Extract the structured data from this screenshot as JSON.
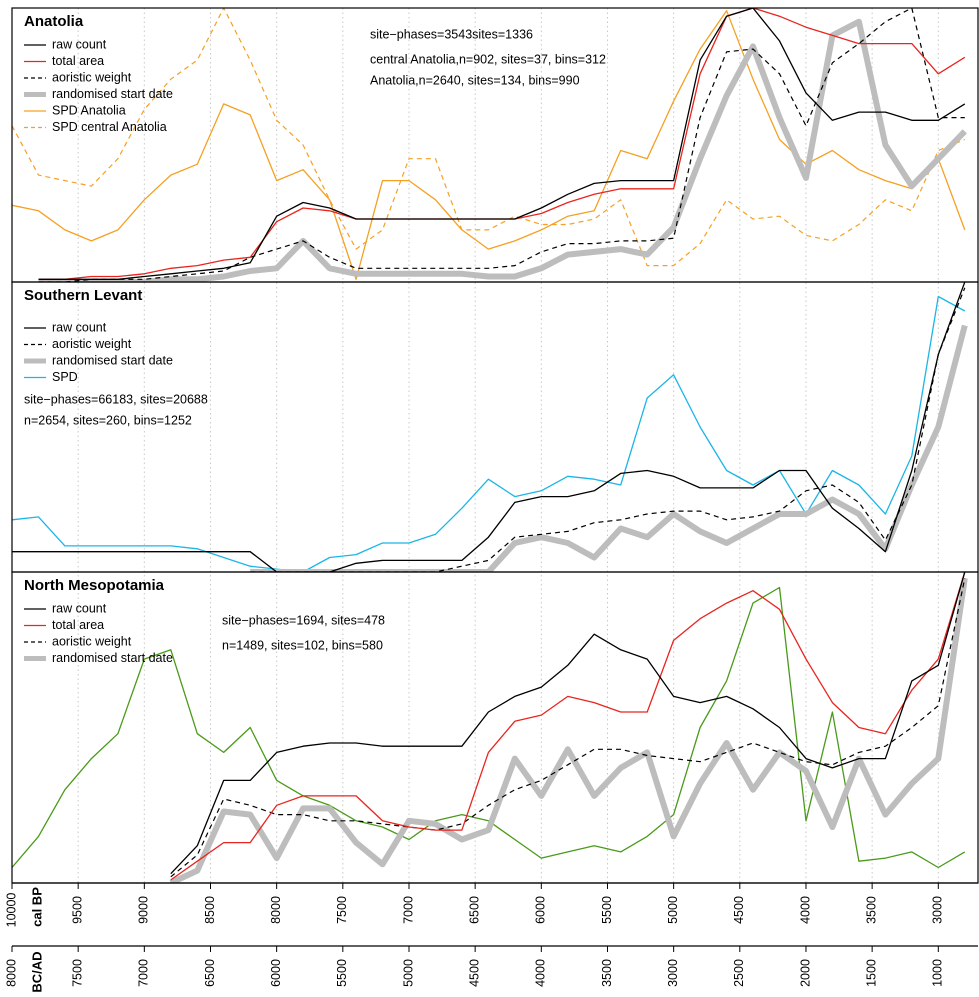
{
  "chart_data": [
    {
      "type": "line",
      "title": "Anatolia",
      "xlim": [
        10000,
        2700
      ],
      "ylim": [
        0,
        1
      ],
      "annotations": [
        {
          "text": "site−phases=3543sites=1336",
          "color": "#000000"
        },
        {
          "text": "central Anatolia,n=902, sites=37, bins=312",
          "color": "#e0781a"
        },
        {
          "text": "Anatolia,n=2640, sites=134, bins=990",
          "color": "#e0781a"
        }
      ],
      "x": [
        10000,
        9800,
        9600,
        9400,
        9200,
        9000,
        8800,
        8600,
        8400,
        8200,
        8000,
        7800,
        7600,
        7400,
        7200,
        7000,
        6800,
        6600,
        6400,
        6200,
        6000,
        5800,
        5600,
        5400,
        5200,
        5000,
        4800,
        4600,
        4400,
        4200,
        4000,
        3800,
        3600,
        3400,
        3200,
        3000,
        2800
      ],
      "series": [
        {
          "name": "raw count",
          "color": "#000000",
          "dash": "solid",
          "width": 1.3,
          "values": [
            null,
            0.01,
            0.01,
            0.01,
            0.01,
            0.02,
            0.03,
            0.04,
            0.05,
            0.07,
            0.24,
            0.29,
            0.27,
            0.23,
            0.23,
            0.23,
            0.23,
            0.23,
            0.23,
            0.23,
            0.27,
            0.32,
            0.36,
            0.37,
            0.37,
            0.37,
            0.81,
            0.97,
            1.0,
            0.88,
            0.69,
            0.59,
            0.62,
            0.62,
            0.59,
            0.59,
            0.65
          ]
        },
        {
          "name": "total area",
          "color": "#e8251f",
          "dash": "solid",
          "width": 1.3,
          "values": [
            null,
            0.01,
            0.01,
            0.02,
            0.02,
            0.03,
            0.05,
            0.06,
            0.08,
            0.09,
            0.22,
            0.27,
            0.26,
            0.23,
            0.23,
            0.23,
            0.23,
            0.23,
            0.23,
            0.23,
            0.25,
            0.29,
            0.32,
            0.34,
            0.34,
            0.34,
            0.76,
            0.97,
            1.0,
            0.97,
            0.93,
            0.9,
            0.87,
            0.87,
            0.87,
            0.76,
            0.82
          ]
        },
        {
          "name": "aoristic weight",
          "color": "#000000",
          "dash": "dashed",
          "width": 1.2,
          "values": [
            null,
            0,
            0,
            0.01,
            0.01,
            0.01,
            0.02,
            0.03,
            0.04,
            0.09,
            0.12,
            0.15,
            0.09,
            0.05,
            0.05,
            0.05,
            0.05,
            0.05,
            0.05,
            0.06,
            0.11,
            0.14,
            0.14,
            0.15,
            0.15,
            0.16,
            0.6,
            0.84,
            0.85,
            0.76,
            0.57,
            0.8,
            0.87,
            0.95,
            1.0,
            0.6,
            0.6
          ]
        },
        {
          "name": "randomised start date",
          "color": "#bdbdbd",
          "dash": "solid",
          "width": 6,
          "values": [
            null,
            0,
            0,
            0,
            0,
            0,
            0.01,
            0.01,
            0.02,
            0.04,
            0.05,
            0.15,
            0.05,
            0.03,
            0.03,
            0.03,
            0.03,
            0.03,
            0.02,
            0.02,
            0.05,
            0.1,
            0.11,
            0.12,
            0.1,
            0.2,
            0.45,
            0.68,
            0.86,
            0.6,
            0.38,
            0.9,
            0.95,
            0.5,
            0.35,
            0.45,
            0.55
          ]
        },
        {
          "name": "SPD Anatolia",
          "color": "#f5a023",
          "dash": "solid",
          "width": 1.3,
          "values": [
            0.28,
            0.26,
            0.19,
            0.15,
            0.19,
            0.3,
            0.39,
            0.43,
            0.65,
            0.61,
            0.37,
            0.41,
            0.3,
            0.01,
            0.37,
            0.37,
            0.3,
            0.19,
            0.12,
            0.15,
            0.19,
            0.24,
            0.26,
            0.48,
            0.45,
            0.66,
            0.85,
            0.99,
            0.74,
            0.52,
            0.43,
            0.48,
            0.41,
            0.37,
            0.34,
            0.45,
            0.19
          ]
        },
        {
          "name": "SPD central Anatolia",
          "color": "#f5a023",
          "dash": "dashed",
          "width": 1.2,
          "values": [
            0.57,
            0.39,
            0.37,
            0.35,
            0.45,
            0.63,
            0.74,
            0.81,
            1.0,
            0.81,
            0.59,
            0.5,
            0.3,
            0.12,
            0.19,
            0.45,
            0.45,
            0.19,
            0.19,
            0.24,
            0.21,
            0.21,
            0.23,
            0.3,
            0.06,
            0.06,
            0.14,
            0.3,
            0.23,
            0.24,
            0.17,
            0.15,
            0.21,
            0.3,
            0.26,
            0.48,
            0.52
          ]
        }
      ]
    },
    {
      "type": "line",
      "title": "Southern Levant",
      "xlim": [
        10000,
        2700
      ],
      "ylim": [
        0,
        1
      ],
      "annotations": [
        {
          "text": "site−phases=66183, sites=20688",
          "color": "#000000"
        },
        {
          "text": "n=2654, sites=260, bins=1252",
          "color": "#1cb5e8"
        }
      ],
      "x": [
        10000,
        9800,
        9600,
        9400,
        9200,
        9000,
        8800,
        8600,
        8400,
        8200,
        8000,
        7800,
        7600,
        7400,
        7200,
        7000,
        6800,
        6600,
        6400,
        6200,
        6000,
        5800,
        5600,
        5400,
        5200,
        5000,
        4800,
        4600,
        4400,
        4200,
        4000,
        3800,
        3600,
        3400,
        3200,
        3000,
        2800
      ],
      "series": [
        {
          "name": "raw count",
          "color": "#000000",
          "dash": "solid",
          "width": 1.3,
          "values": [
            0.07,
            0.07,
            0.07,
            0.07,
            0.07,
            0.07,
            0.07,
            0.07,
            0.07,
            0.07,
            0,
            0,
            0,
            0.03,
            0.04,
            0.04,
            0.04,
            0.04,
            0.12,
            0.24,
            0.26,
            0.26,
            0.28,
            0.34,
            0.35,
            0.33,
            0.29,
            0.29,
            0.29,
            0.35,
            0.35,
            0.22,
            0.15,
            0.07,
            0.35,
            0.75,
            1.0
          ]
        },
        {
          "name": "aoristic weight",
          "color": "#000000",
          "dash": "dashed",
          "width": 1.2,
          "values": [
            null,
            null,
            null,
            null,
            null,
            null,
            null,
            null,
            null,
            0,
            0,
            0,
            0,
            0,
            0,
            0,
            0,
            0.02,
            0.04,
            0.12,
            0.13,
            0.14,
            0.17,
            0.18,
            0.2,
            0.21,
            0.21,
            0.18,
            0.19,
            0.21,
            0.28,
            0.3,
            0.24,
            0.11,
            0.3,
            0.75,
            0.98
          ]
        },
        {
          "name": "randomised start date",
          "color": "#bdbdbd",
          "dash": "solid",
          "width": 6,
          "values": [
            null,
            null,
            null,
            null,
            null,
            null,
            null,
            null,
            null,
            0,
            0,
            0,
            0,
            0,
            0,
            0,
            0,
            0,
            0,
            0.1,
            0.12,
            0.1,
            0.05,
            0.15,
            0.12,
            0.2,
            0.14,
            0.1,
            0.15,
            0.2,
            0.2,
            0.25,
            0.2,
            0.08,
            0.3,
            0.5,
            0.85
          ]
        },
        {
          "name": "SPD",
          "color": "#1cb5e8",
          "dash": "solid",
          "width": 1.3,
          "values": [
            0.18,
            0.19,
            0.09,
            0.09,
            0.09,
            0.09,
            0.09,
            0.08,
            0.05,
            0.02,
            0.01,
            0,
            0.05,
            0.06,
            0.1,
            0.1,
            0.13,
            0.22,
            0.32,
            0.26,
            0.28,
            0.33,
            0.32,
            0.3,
            0.6,
            0.68,
            0.5,
            0.35,
            0.3,
            0.35,
            0.2,
            0.35,
            0.3,
            0.2,
            0.4,
            0.95,
            0.9
          ]
        }
      ]
    },
    {
      "type": "line",
      "title": "North Mesopotamia",
      "xlim": [
        10000,
        2700
      ],
      "ylim": [
        0,
        1
      ],
      "annotations": [
        {
          "text": "site−phases=1694, sites=478",
          "color": "#000000"
        },
        {
          "text": "n=1489, sites=102, bins=580",
          "color": "#4a9a1a"
        }
      ],
      "x": [
        10000,
        9800,
        9600,
        9400,
        9200,
        9000,
        8800,
        8600,
        8400,
        8200,
        8000,
        7800,
        7600,
        7400,
        7200,
        7000,
        6800,
        6600,
        6400,
        6200,
        6000,
        5800,
        5600,
        5400,
        5200,
        5000,
        4800,
        4600,
        4400,
        4200,
        4000,
        3800,
        3600,
        3400,
        3200,
        3000,
        2800
      ],
      "series": [
        {
          "name": "raw count",
          "color": "#000000",
          "dash": "solid",
          "width": 1.3,
          "values": [
            null,
            null,
            null,
            null,
            null,
            null,
            0.03,
            0.12,
            0.33,
            0.33,
            0.42,
            0.44,
            0.45,
            0.45,
            0.44,
            0.44,
            0.44,
            0.44,
            0.55,
            0.6,
            0.63,
            0.7,
            0.8,
            0.75,
            0.72,
            0.6,
            0.58,
            0.6,
            0.56,
            0.5,
            0.4,
            0.37,
            0.4,
            0.4,
            0.65,
            0.7,
            1.0
          ]
        },
        {
          "name": "total area",
          "color": "#e8251f",
          "dash": "solid",
          "width": 1.3,
          "values": [
            null,
            null,
            null,
            null,
            null,
            null,
            0.01,
            0.07,
            0.13,
            0.13,
            0.25,
            0.28,
            0.28,
            0.28,
            0.2,
            0.18,
            0.17,
            0.17,
            0.42,
            0.52,
            0.54,
            0.6,
            0.58,
            0.55,
            0.55,
            0.78,
            0.85,
            0.9,
            0.94,
            0.88,
            0.72,
            0.58,
            0.5,
            0.48,
            0.62,
            0.72,
            1.0
          ]
        },
        {
          "name": "aoristic weight",
          "color": "#000000",
          "dash": "dashed",
          "width": 1.2,
          "values": [
            null,
            null,
            null,
            null,
            null,
            null,
            0.02,
            0.09,
            0.27,
            0.25,
            0.22,
            0.22,
            0.2,
            0.2,
            0.19,
            0.18,
            0.17,
            0.19,
            0.25,
            0.3,
            0.33,
            0.38,
            0.43,
            0.43,
            0.41,
            0.4,
            0.39,
            0.42,
            0.45,
            0.42,
            0.39,
            0.38,
            0.42,
            0.44,
            0.5,
            0.57,
            0.98
          ]
        },
        {
          "name": "randomised start date",
          "color": "#bdbdbd",
          "dash": "solid",
          "width": 6,
          "values": [
            null,
            null,
            null,
            null,
            null,
            null,
            0,
            0.04,
            0.23,
            0.22,
            0.08,
            0.24,
            0.24,
            0.13,
            0.06,
            0.2,
            0.19,
            0.14,
            0.17,
            0.4,
            0.28,
            0.43,
            0.28,
            0.37,
            0.42,
            0.15,
            0.32,
            0.45,
            0.3,
            0.42,
            0.36,
            0.18,
            0.4,
            0.22,
            0.32,
            0.4,
            0.98
          ]
        },
        {
          "color": "#4a9a1a",
          "dash": "solid",
          "width": 1.3,
          "values": [
            0.05,
            0.15,
            0.3,
            0.4,
            0.48,
            0.72,
            0.75,
            0.48,
            0.42,
            0.5,
            0.33,
            0.28,
            0.25,
            0.2,
            0.18,
            0.14,
            0.2,
            0.22,
            0.2,
            0.14,
            0.08,
            0.1,
            0.12,
            0.1,
            0.15,
            0.22,
            0.5,
            0.65,
            0.9,
            0.95,
            0.2,
            0.55,
            0.07,
            0.08,
            0.1,
            0.05,
            0.1
          ]
        }
      ],
      "grid": true,
      "xlabel": "cal BP",
      "xticks": [
        10000,
        9500,
        9000,
        8500,
        8000,
        7500,
        7000,
        6500,
        6000,
        5500,
        5000,
        4500,
        4000,
        3500,
        3000
      ],
      "x2label": "BC/AD",
      "x2lim": [
        8000,
        700
      ],
      "x2ticks": [
        8000,
        7500,
        7000,
        6500,
        6000,
        5500,
        5000,
        4500,
        4000,
        3500,
        3000,
        2500,
        2000,
        1500,
        1000
      ]
    }
  ]
}
